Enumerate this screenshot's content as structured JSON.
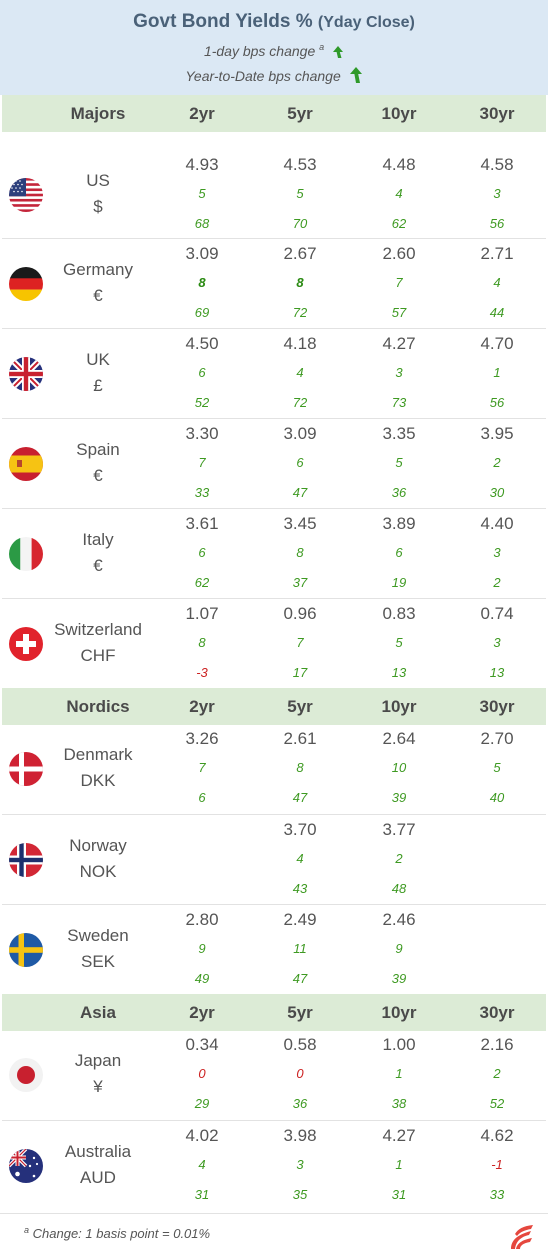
{
  "header": {
    "title": "Govt Bond Yields %",
    "title_suffix": "(Yday Close)",
    "legend_daily": "1-day bps change",
    "legend_daily_mark": "a",
    "legend_ytd": "Year-to-Date bps change"
  },
  "sections": [
    {
      "name": "Majors",
      "cols": [
        "2yr",
        "5yr",
        "10yr",
        "30yr"
      ]
    },
    {
      "name": "Nordics",
      "cols": [
        "2yr",
        "5yr",
        "10yr",
        "30yr"
      ]
    },
    {
      "name": "Asia",
      "cols": [
        "2yr",
        "5yr",
        "10yr",
        "30yr"
      ]
    }
  ],
  "rows": [
    {
      "name": "US",
      "currency": "$",
      "flag": "us-flag-icon",
      "yields": [
        "4.93",
        "4.53",
        "4.48",
        "4.58"
      ],
      "d1": [
        "5",
        "5",
        "4",
        "3"
      ],
      "ytd": [
        "68",
        "70",
        "62",
        "56"
      ]
    },
    {
      "name": "Germany",
      "currency": "€",
      "flag": "germany-flag-icon",
      "yields": [
        "3.09",
        "2.67",
        "2.60",
        "2.71"
      ],
      "d1": [
        "8",
        "8",
        "7",
        "4"
      ],
      "ytd": [
        "69",
        "72",
        "57",
        "44"
      ]
    },
    {
      "name": "UK",
      "currency": "£",
      "flag": "uk-flag-icon",
      "yields": [
        "4.50",
        "4.18",
        "4.27",
        "4.70"
      ],
      "d1": [
        "6",
        "4",
        "3",
        "1"
      ],
      "ytd": [
        "52",
        "72",
        "73",
        "56"
      ]
    },
    {
      "name": "Spain",
      "currency": "€",
      "flag": "spain-flag-icon",
      "yields": [
        "3.30",
        "3.09",
        "3.35",
        "3.95"
      ],
      "d1": [
        "7",
        "6",
        "5",
        "2"
      ],
      "ytd": [
        "33",
        "47",
        "36",
        "30"
      ]
    },
    {
      "name": "Italy",
      "currency": "€",
      "flag": "italy-flag-icon",
      "yields": [
        "3.61",
        "3.45",
        "3.89",
        "4.40"
      ],
      "d1": [
        "6",
        "8",
        "6",
        "3"
      ],
      "ytd": [
        "62",
        "37",
        "19",
        "2"
      ]
    },
    {
      "name": "Switzerland",
      "currency": "CHF",
      "flag": "switzerland-flag-icon",
      "yields": [
        "1.07",
        "0.96",
        "0.83",
        "0.74"
      ],
      "d1": [
        "8",
        "7",
        "5",
        "3"
      ],
      "ytd": [
        "-3",
        "17",
        "13",
        "13"
      ]
    },
    {
      "name": "Denmark",
      "currency": "DKK",
      "flag": "denmark-flag-icon",
      "yields": [
        "3.26",
        "2.61",
        "2.64",
        "2.70"
      ],
      "d1": [
        "7",
        "8",
        "10",
        "5"
      ],
      "ytd": [
        "6",
        "47",
        "39",
        "40"
      ]
    },
    {
      "name": "Norway",
      "currency": "NOK",
      "flag": "norway-flag-icon",
      "yields": [
        "",
        "3.70",
        "3.77",
        ""
      ],
      "d1": [
        "",
        "4",
        "2",
        ""
      ],
      "ytd": [
        "",
        "43",
        "48",
        ""
      ]
    },
    {
      "name": "Sweden",
      "currency": "SEK",
      "flag": "sweden-flag-icon",
      "yields": [
        "2.80",
        "2.49",
        "2.46",
        ""
      ],
      "d1": [
        "9",
        "11",
        "9",
        ""
      ],
      "ytd": [
        "49",
        "47",
        "39",
        ""
      ]
    },
    {
      "name": "Japan",
      "currency": "¥",
      "flag": "japan-flag-icon",
      "yields": [
        "0.34",
        "0.58",
        "1.00",
        "2.16"
      ],
      "d1": [
        "0",
        "0",
        "1",
        "2"
      ],
      "ytd": [
        "29",
        "36",
        "38",
        "52"
      ]
    },
    {
      "name": "Australia",
      "currency": "AUD",
      "flag": "australia-flag-icon",
      "yields": [
        "4.02",
        "3.98",
        "4.27",
        "4.62"
      ],
      "d1": [
        "4",
        "3",
        "1",
        "-1"
      ],
      "ytd": [
        "31",
        "35",
        "31",
        "33"
      ]
    }
  ],
  "footer": {
    "mark": "a",
    "note": "Change: 1 basis point = 0.01%",
    "logo": "brand-logo-icon"
  },
  "colors": {
    "up": "#3e9a22",
    "down": "#cc2222",
    "header_bg": "#dbe8f4",
    "section_bg": "#dcebd6"
  }
}
